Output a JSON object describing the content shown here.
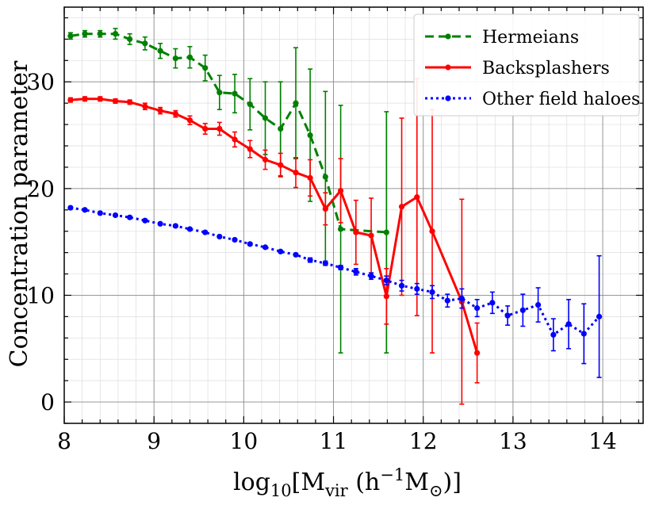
{
  "chart_data": {
    "type": "line",
    "title": "",
    "xlabel": {
      "prefix": "log",
      "prefix_sub": "10",
      "open": "[M",
      "m_sub": "vir",
      "paren_open": " (h",
      "h_sup": "−1",
      "m2": "M",
      "sun_sub": "⊙",
      "close": ")]"
    },
    "ylabel": "Concentration parameter",
    "xlim": [
      8,
      14.45
    ],
    "ylim": [
      -2,
      37
    ],
    "x_ticks": [
      8,
      9,
      10,
      11,
      12,
      13,
      14
    ],
    "y_ticks": [
      0,
      10,
      20,
      30
    ],
    "grid": true,
    "minor_grid": true,
    "legend_position": "top-right",
    "series": [
      {
        "name": "Hermeians",
        "color": "#008000",
        "style": "dashed",
        "x": [
          8.07,
          8.23,
          8.4,
          8.57,
          8.73,
          8.9,
          9.07,
          9.24,
          9.4,
          9.57,
          9.73,
          9.9,
          10.07,
          10.24,
          10.41,
          10.58,
          10.74,
          10.91,
          11.08,
          11.59
        ],
        "y": [
          34.3,
          34.5,
          34.5,
          34.5,
          34.0,
          33.6,
          32.9,
          32.2,
          32.3,
          31.3,
          29.0,
          28.9,
          27.9,
          26.6,
          25.6,
          28.0,
          25.0,
          21.1,
          16.2,
          15.9
        ],
        "err": [
          0.3,
          0.3,
          0.3,
          0.5,
          0.5,
          0.6,
          0.7,
          0.9,
          1.0,
          1.2,
          1.6,
          1.8,
          2.4,
          3.4,
          4.4,
          5.2,
          6.2,
          8.0,
          11.6,
          11.3
        ]
      },
      {
        "name": "Backsplashers",
        "color": "#ff0000",
        "style": "solid",
        "x": [
          8.07,
          8.23,
          8.4,
          8.57,
          8.73,
          8.9,
          9.07,
          9.24,
          9.4,
          9.57,
          9.73,
          9.9,
          10.07,
          10.24,
          10.41,
          10.58,
          10.74,
          10.91,
          11.08,
          11.25,
          11.42,
          11.59,
          11.76,
          11.93,
          12.1,
          12.43,
          12.6
        ],
        "y": [
          28.3,
          28.4,
          28.4,
          28.2,
          28.1,
          27.7,
          27.3,
          27.0,
          26.4,
          25.6,
          25.6,
          24.6,
          23.7,
          22.7,
          22.2,
          21.5,
          21.0,
          18.1,
          19.8,
          15.9,
          15.6,
          9.9,
          18.3,
          19.2,
          16.0,
          9.4,
          4.6
        ],
        "err": [
          0.2,
          0.2,
          0.2,
          0.2,
          0.2,
          0.3,
          0.3,
          0.3,
          0.4,
          0.5,
          0.6,
          0.7,
          0.8,
          0.9,
          1.1,
          1.4,
          1.7,
          1.5,
          3.0,
          3.0,
          3.5,
          2.6,
          8.3,
          11.1,
          11.4,
          9.6,
          2.8
        ]
      },
      {
        "name": "Other field haloes",
        "color": "#0000ff",
        "style": "dotted",
        "x": [
          8.07,
          8.23,
          8.4,
          8.57,
          8.73,
          8.9,
          9.07,
          9.24,
          9.4,
          9.57,
          9.73,
          9.9,
          10.07,
          10.24,
          10.41,
          10.58,
          10.74,
          10.91,
          11.08,
          11.25,
          11.42,
          11.59,
          11.76,
          11.93,
          12.1,
          12.27,
          12.43,
          12.6,
          12.77,
          12.94,
          13.11,
          13.28,
          13.45,
          13.62,
          13.79,
          13.96
        ],
        "y": [
          18.2,
          18.0,
          17.7,
          17.5,
          17.3,
          17.0,
          16.7,
          16.5,
          16.2,
          15.9,
          15.5,
          15.2,
          14.8,
          14.5,
          14.1,
          13.8,
          13.3,
          13.0,
          12.6,
          12.2,
          11.8,
          11.4,
          10.9,
          10.6,
          10.3,
          9.5,
          9.7,
          8.8,
          9.3,
          8.1,
          8.6,
          9.1,
          6.3,
          7.3,
          6.4,
          8.0
        ],
        "err": [
          0.1,
          0.1,
          0.1,
          0.1,
          0.1,
          0.1,
          0.1,
          0.1,
          0.1,
          0.1,
          0.1,
          0.1,
          0.1,
          0.1,
          0.1,
          0.1,
          0.2,
          0.2,
          0.2,
          0.3,
          0.3,
          0.4,
          0.5,
          0.5,
          0.6,
          0.6,
          0.9,
          0.8,
          1.0,
          0.9,
          1.5,
          1.6,
          1.5,
          2.3,
          2.8,
          5.7
        ]
      }
    ]
  }
}
